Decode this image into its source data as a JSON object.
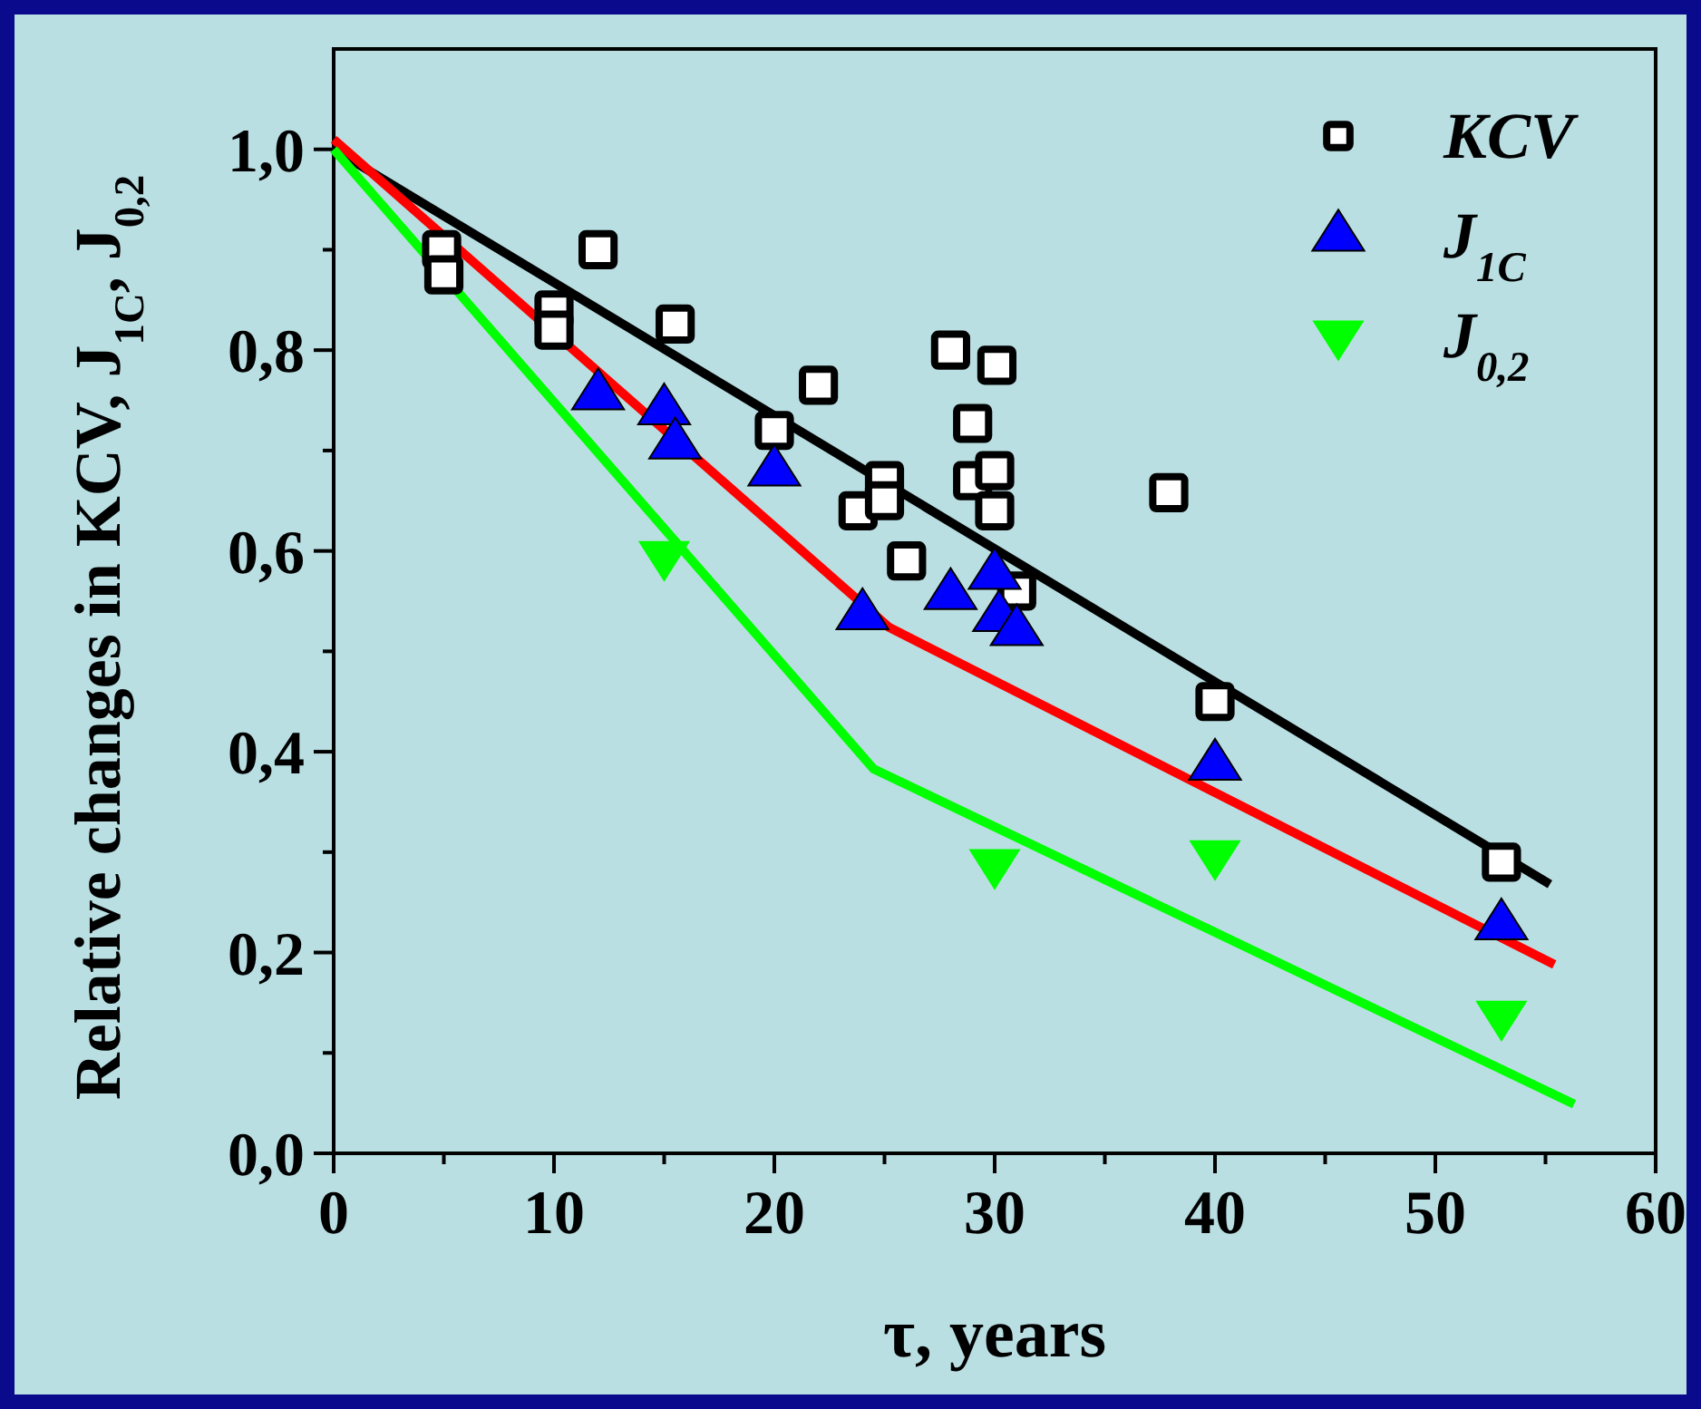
{
  "chart_data": {
    "type": "scatter",
    "xlabel": "τ, years",
    "ylabel": "Relative changes in KCV, J$_{1C}$, J$_{0,2}$",
    "xlim": [
      0,
      60
    ],
    "ylim": [
      0,
      1.1
    ],
    "xticks": [
      0,
      {
        "value": 5,
        "label": null
      },
      10,
      {
        "value": 15,
        "label": null
      },
      20,
      {
        "value": 25,
        "label": null
      },
      30,
      {
        "value": 35,
        "label": null
      },
      40,
      {
        "value": 45,
        "label": null
      },
      50,
      {
        "value": 55,
        "label": null
      },
      60
    ],
    "yticks": [
      {
        "value": 0,
        "label": "0,0"
      },
      {
        "value": 0.1,
        "label": null
      },
      {
        "value": 0.2,
        "label": "0,2"
      },
      {
        "value": 0.3,
        "label": null
      },
      {
        "value": 0.4,
        "label": "0,4"
      },
      {
        "value": 0.5,
        "label": null
      },
      {
        "value": 0.6,
        "label": "0,6"
      },
      {
        "value": 0.7,
        "label": null
      },
      {
        "value": 0.8,
        "label": "0,8"
      },
      {
        "value": 0.9,
        "label": null
      },
      {
        "value": 1.0,
        "label": "1,0"
      }
    ],
    "grid": false,
    "legend": "top right",
    "series": [
      {
        "type": "line",
        "color": "#000000",
        "marker": "none",
        "line_style": "solid",
        "x": [
          0,
          55.2
        ],
        "values": [
          1.0,
          0.268
        ]
      },
      {
        "type": "line",
        "color": "#ff0000",
        "marker": "none",
        "line_style": "solid",
        "x": [
          0,
          25.2,
          55.4
        ],
        "values": [
          1.01,
          0.524,
          0.188
        ]
      },
      {
        "type": "line",
        "color": "#00ff00",
        "marker": "none",
        "line_style": "solid",
        "x": [
          0,
          24.5,
          56.3
        ],
        "values": [
          1.0,
          0.383,
          0.049
        ]
      },
      {
        "name": "KCV",
        "color": "#000000",
        "marker": "square",
        "x": [
          4.9,
          5,
          10,
          10,
          12,
          15.5,
          20,
          22,
          23.8,
          25,
          25,
          26,
          28,
          30.1,
          29,
          29,
          30,
          30,
          31,
          37.9,
          40,
          53
        ],
        "values": [
          0.9,
          0.875,
          0.84,
          0.82,
          0.9,
          0.826,
          0.72,
          0.765,
          0.64,
          0.67,
          0.65,
          0.59,
          0.8,
          0.785,
          0.727,
          0.67,
          0.64,
          0.68,
          0.56,
          0.658,
          0.45,
          0.29
        ]
      },
      {
        "name": "J$_{1C}$",
        "color": "#0000ff",
        "marker": "triangle",
        "x": [
          12,
          15,
          15.5,
          20,
          24,
          28,
          30,
          30.2,
          31,
          40,
          53
        ],
        "values": [
          0.756,
          0.741,
          0.707,
          0.68,
          0.537,
          0.557,
          0.577,
          0.535,
          0.521,
          0.387,
          0.228
        ]
      },
      {
        "name": "J$_{0,2}$",
        "color": "#00ff00",
        "marker": "triangle-down",
        "x": [
          15,
          30,
          40,
          53
        ],
        "values": [
          0.595,
          0.288,
          0.297,
          0.137
        ]
      }
    ]
  }
}
